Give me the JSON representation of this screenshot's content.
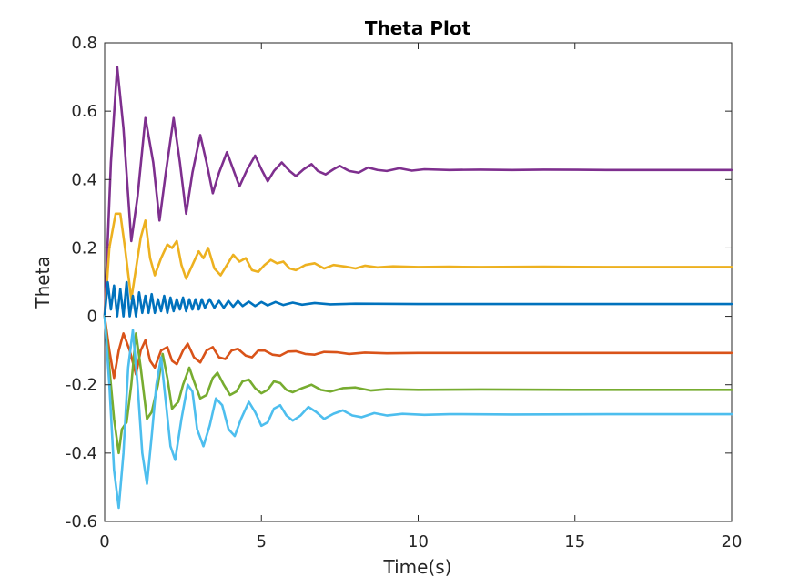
{
  "chart_data": {
    "type": "line",
    "title": "Theta Plot",
    "xlabel": "Time(s)",
    "ylabel": "Theta",
    "xlim": [
      0,
      20
    ],
    "ylim": [
      -0.6,
      0.8
    ],
    "x_ticks": [
      0,
      5,
      10,
      15,
      20
    ],
    "x_tick_labels": [
      "0",
      "5",
      "10",
      "15",
      "20"
    ],
    "y_ticks": [
      -0.6,
      -0.4,
      -0.2,
      0,
      0.2,
      0.4,
      0.6,
      0.8
    ],
    "y_tick_labels": [
      "-0.6",
      "-0.4",
      "-0.2",
      "0",
      "0.2",
      "0.4",
      "0.6",
      "0.8"
    ],
    "grid": false,
    "series": [
      {
        "color": "#7e2f8e",
        "points": [
          [
            0,
            0
          ],
          [
            0.2,
            0.45
          ],
          [
            0.4,
            0.73
          ],
          [
            0.6,
            0.55
          ],
          [
            0.85,
            0.22
          ],
          [
            1.05,
            0.35
          ],
          [
            1.3,
            0.58
          ],
          [
            1.55,
            0.45
          ],
          [
            1.75,
            0.28
          ],
          [
            1.95,
            0.42
          ],
          [
            2.2,
            0.58
          ],
          [
            2.4,
            0.45
          ],
          [
            2.6,
            0.3
          ],
          [
            2.8,
            0.42
          ],
          [
            3.05,
            0.53
          ],
          [
            3.25,
            0.45
          ],
          [
            3.45,
            0.36
          ],
          [
            3.65,
            0.42
          ],
          [
            3.9,
            0.48
          ],
          [
            4.1,
            0.43
          ],
          [
            4.3,
            0.38
          ],
          [
            4.55,
            0.43
          ],
          [
            4.8,
            0.47
          ],
          [
            5.0,
            0.43
          ],
          [
            5.2,
            0.395
          ],
          [
            5.4,
            0.425
          ],
          [
            5.65,
            0.45
          ],
          [
            5.9,
            0.425
          ],
          [
            6.1,
            0.41
          ],
          [
            6.35,
            0.43
          ],
          [
            6.6,
            0.445
          ],
          [
            6.8,
            0.425
          ],
          [
            7.05,
            0.415
          ],
          [
            7.3,
            0.43
          ],
          [
            7.5,
            0.44
          ],
          [
            7.8,
            0.425
          ],
          [
            8.1,
            0.42
          ],
          [
            8.4,
            0.435
          ],
          [
            8.7,
            0.428
          ],
          [
            9.0,
            0.425
          ],
          [
            9.4,
            0.433
          ],
          [
            9.8,
            0.426
          ],
          [
            10.2,
            0.43
          ],
          [
            11,
            0.428
          ],
          [
            12,
            0.429
          ],
          [
            13,
            0.428
          ],
          [
            14,
            0.429
          ],
          [
            16,
            0.428
          ],
          [
            18,
            0.428
          ],
          [
            20,
            0.428
          ]
        ]
      },
      {
        "color": "#edb120",
        "points": [
          [
            0,
            0
          ],
          [
            0.15,
            0.2
          ],
          [
            0.35,
            0.3
          ],
          [
            0.5,
            0.3
          ],
          [
            0.65,
            0.2
          ],
          [
            0.85,
            0.05
          ],
          [
            1.0,
            0.14
          ],
          [
            1.15,
            0.23
          ],
          [
            1.3,
            0.28
          ],
          [
            1.45,
            0.17
          ],
          [
            1.6,
            0.12
          ],
          [
            1.8,
            0.17
          ],
          [
            2.0,
            0.21
          ],
          [
            2.15,
            0.2
          ],
          [
            2.3,
            0.22
          ],
          [
            2.45,
            0.15
          ],
          [
            2.6,
            0.11
          ],
          [
            2.8,
            0.15
          ],
          [
            3.0,
            0.19
          ],
          [
            3.15,
            0.17
          ],
          [
            3.3,
            0.2
          ],
          [
            3.5,
            0.14
          ],
          [
            3.7,
            0.12
          ],
          [
            3.9,
            0.15
          ],
          [
            4.1,
            0.18
          ],
          [
            4.3,
            0.16
          ],
          [
            4.5,
            0.17
          ],
          [
            4.7,
            0.135
          ],
          [
            4.9,
            0.13
          ],
          [
            5.1,
            0.15
          ],
          [
            5.3,
            0.165
          ],
          [
            5.5,
            0.155
          ],
          [
            5.7,
            0.16
          ],
          [
            5.9,
            0.14
          ],
          [
            6.1,
            0.135
          ],
          [
            6.4,
            0.15
          ],
          [
            6.7,
            0.155
          ],
          [
            7.0,
            0.14
          ],
          [
            7.3,
            0.15
          ],
          [
            7.7,
            0.145
          ],
          [
            8.0,
            0.14
          ],
          [
            8.3,
            0.148
          ],
          [
            8.7,
            0.143
          ],
          [
            9.2,
            0.146
          ],
          [
            10,
            0.144
          ],
          [
            11,
            0.145
          ],
          [
            12,
            0.144
          ],
          [
            14,
            0.145
          ],
          [
            16,
            0.144
          ],
          [
            20,
            0.144
          ]
        ]
      },
      {
        "color": "#0072bd",
        "points": [
          [
            0,
            0
          ],
          [
            0.1,
            0.1
          ],
          [
            0.2,
            0.02
          ],
          [
            0.3,
            0.09
          ],
          [
            0.4,
            0.0
          ],
          [
            0.5,
            0.08
          ],
          [
            0.6,
            0.0
          ],
          [
            0.7,
            0.1
          ],
          [
            0.8,
            0.0
          ],
          [
            0.9,
            0.06
          ],
          [
            1.0,
            0.0
          ],
          [
            1.1,
            0.07
          ],
          [
            1.2,
            0.01
          ],
          [
            1.3,
            0.06
          ],
          [
            1.4,
            0.01
          ],
          [
            1.5,
            0.065
          ],
          [
            1.6,
            0.01
          ],
          [
            1.7,
            0.05
          ],
          [
            1.8,
            0.015
          ],
          [
            1.9,
            0.06
          ],
          [
            2.0,
            0.01
          ],
          [
            2.1,
            0.055
          ],
          [
            2.2,
            0.015
          ],
          [
            2.3,
            0.05
          ],
          [
            2.4,
            0.02
          ],
          [
            2.5,
            0.055
          ],
          [
            2.6,
            0.015
          ],
          [
            2.7,
            0.05
          ],
          [
            2.8,
            0.02
          ],
          [
            2.9,
            0.05
          ],
          [
            3.0,
            0.02
          ],
          [
            3.1,
            0.05
          ],
          [
            3.2,
            0.025
          ],
          [
            3.35,
            0.05
          ],
          [
            3.5,
            0.025
          ],
          [
            3.65,
            0.045
          ],
          [
            3.8,
            0.025
          ],
          [
            3.95,
            0.045
          ],
          [
            4.1,
            0.028
          ],
          [
            4.25,
            0.045
          ],
          [
            4.4,
            0.03
          ],
          [
            4.6,
            0.043
          ],
          [
            4.8,
            0.03
          ],
          [
            5.0,
            0.042
          ],
          [
            5.2,
            0.032
          ],
          [
            5.45,
            0.042
          ],
          [
            5.7,
            0.033
          ],
          [
            6.0,
            0.04
          ],
          [
            6.3,
            0.034
          ],
          [
            6.7,
            0.039
          ],
          [
            7.2,
            0.035
          ],
          [
            8,
            0.037
          ],
          [
            10,
            0.036
          ],
          [
            14,
            0.036
          ],
          [
            20,
            0.036
          ]
        ]
      },
      {
        "color": "#d95319",
        "points": [
          [
            0,
            0
          ],
          [
            0.15,
            -0.1
          ],
          [
            0.3,
            -0.18
          ],
          [
            0.45,
            -0.1
          ],
          [
            0.6,
            -0.05
          ],
          [
            0.8,
            -0.1
          ],
          [
            1.0,
            -0.17
          ],
          [
            1.15,
            -0.1
          ],
          [
            1.3,
            -0.07
          ],
          [
            1.45,
            -0.13
          ],
          [
            1.6,
            -0.15
          ],
          [
            1.8,
            -0.1
          ],
          [
            2.0,
            -0.09
          ],
          [
            2.15,
            -0.13
          ],
          [
            2.3,
            -0.14
          ],
          [
            2.5,
            -0.1
          ],
          [
            2.65,
            -0.08
          ],
          [
            2.85,
            -0.12
          ],
          [
            3.05,
            -0.135
          ],
          [
            3.25,
            -0.1
          ],
          [
            3.45,
            -0.09
          ],
          [
            3.65,
            -0.12
          ],
          [
            3.85,
            -0.125
          ],
          [
            4.05,
            -0.1
          ],
          [
            4.25,
            -0.095
          ],
          [
            4.5,
            -0.115
          ],
          [
            4.7,
            -0.12
          ],
          [
            4.9,
            -0.1
          ],
          [
            5.1,
            -0.1
          ],
          [
            5.35,
            -0.112
          ],
          [
            5.6,
            -0.115
          ],
          [
            5.85,
            -0.103
          ],
          [
            6.1,
            -0.102
          ],
          [
            6.4,
            -0.11
          ],
          [
            6.7,
            -0.112
          ],
          [
            7.0,
            -0.104
          ],
          [
            7.4,
            -0.105
          ],
          [
            7.8,
            -0.11
          ],
          [
            8.3,
            -0.106
          ],
          [
            9,
            -0.108
          ],
          [
            10,
            -0.107
          ],
          [
            12,
            -0.107
          ],
          [
            15,
            -0.107
          ],
          [
            20,
            -0.107
          ]
        ]
      },
      {
        "color": "#77ac30",
        "points": [
          [
            0,
            0
          ],
          [
            0.15,
            -0.15
          ],
          [
            0.3,
            -0.3
          ],
          [
            0.45,
            -0.4
          ],
          [
            0.55,
            -0.33
          ],
          [
            0.7,
            -0.31
          ],
          [
            0.85,
            -0.2
          ],
          [
            1.0,
            -0.05
          ],
          [
            1.15,
            -0.15
          ],
          [
            1.35,
            -0.3
          ],
          [
            1.5,
            -0.28
          ],
          [
            1.7,
            -0.2
          ],
          [
            1.85,
            -0.11
          ],
          [
            2.0,
            -0.18
          ],
          [
            2.15,
            -0.27
          ],
          [
            2.35,
            -0.25
          ],
          [
            2.5,
            -0.2
          ],
          [
            2.7,
            -0.15
          ],
          [
            2.85,
            -0.19
          ],
          [
            3.05,
            -0.24
          ],
          [
            3.25,
            -0.23
          ],
          [
            3.45,
            -0.18
          ],
          [
            3.6,
            -0.165
          ],
          [
            3.8,
            -0.2
          ],
          [
            4.0,
            -0.23
          ],
          [
            4.2,
            -0.22
          ],
          [
            4.4,
            -0.19
          ],
          [
            4.6,
            -0.185
          ],
          [
            4.8,
            -0.21
          ],
          [
            5.0,
            -0.225
          ],
          [
            5.2,
            -0.215
          ],
          [
            5.4,
            -0.19
          ],
          [
            5.6,
            -0.195
          ],
          [
            5.8,
            -0.215
          ],
          [
            6.0,
            -0.222
          ],
          [
            6.3,
            -0.21
          ],
          [
            6.6,
            -0.2
          ],
          [
            6.9,
            -0.215
          ],
          [
            7.2,
            -0.22
          ],
          [
            7.6,
            -0.21
          ],
          [
            8.0,
            -0.208
          ],
          [
            8.5,
            -0.217
          ],
          [
            9.0,
            -0.213
          ],
          [
            10,
            -0.215
          ],
          [
            12,
            -0.214
          ],
          [
            15,
            -0.215
          ],
          [
            20,
            -0.215
          ]
        ]
      },
      {
        "color": "#4dbeee",
        "points": [
          [
            0,
            0
          ],
          [
            0.15,
            -0.2
          ],
          [
            0.3,
            -0.45
          ],
          [
            0.45,
            -0.56
          ],
          [
            0.6,
            -0.4
          ],
          [
            0.75,
            -0.15
          ],
          [
            0.9,
            -0.04
          ],
          [
            1.05,
            -0.2
          ],
          [
            1.2,
            -0.4
          ],
          [
            1.35,
            -0.49
          ],
          [
            1.5,
            -0.35
          ],
          [
            1.65,
            -0.2
          ],
          [
            1.8,
            -0.12
          ],
          [
            1.95,
            -0.25
          ],
          [
            2.1,
            -0.38
          ],
          [
            2.25,
            -0.42
          ],
          [
            2.45,
            -0.3
          ],
          [
            2.65,
            -0.2
          ],
          [
            2.8,
            -0.22
          ],
          [
            2.95,
            -0.33
          ],
          [
            3.15,
            -0.38
          ],
          [
            3.35,
            -0.32
          ],
          [
            3.55,
            -0.24
          ],
          [
            3.75,
            -0.26
          ],
          [
            3.95,
            -0.33
          ],
          [
            4.15,
            -0.35
          ],
          [
            4.35,
            -0.3
          ],
          [
            4.6,
            -0.25
          ],
          [
            4.8,
            -0.28
          ],
          [
            5.0,
            -0.32
          ],
          [
            5.2,
            -0.31
          ],
          [
            5.4,
            -0.27
          ],
          [
            5.6,
            -0.26
          ],
          [
            5.8,
            -0.29
          ],
          [
            6.0,
            -0.305
          ],
          [
            6.25,
            -0.29
          ],
          [
            6.5,
            -0.265
          ],
          [
            6.75,
            -0.28
          ],
          [
            7.0,
            -0.3
          ],
          [
            7.3,
            -0.285
          ],
          [
            7.6,
            -0.275
          ],
          [
            7.9,
            -0.29
          ],
          [
            8.2,
            -0.295
          ],
          [
            8.6,
            -0.283
          ],
          [
            9.0,
            -0.29
          ],
          [
            9.5,
            -0.285
          ],
          [
            10.2,
            -0.288
          ],
          [
            11,
            -0.286
          ],
          [
            13,
            -0.287
          ],
          [
            16,
            -0.286
          ],
          [
            20,
            -0.286
          ]
        ]
      }
    ]
  }
}
